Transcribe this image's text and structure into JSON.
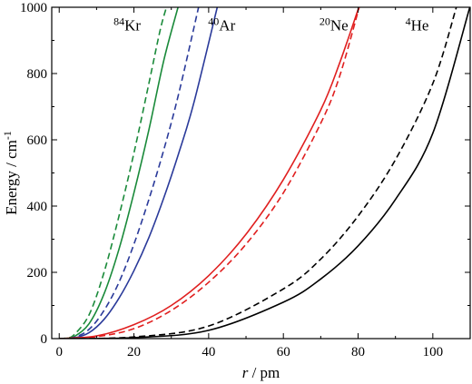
{
  "chart_data": {
    "type": "line",
    "title": "",
    "xlabel_var": "r",
    "xlabel_unit": " / pm",
    "ylabel_main": "Energy / cm",
    "ylabel_sup": "-1",
    "xlim": [
      -2,
      110
    ],
    "ylim": [
      0,
      1000
    ],
    "xticks": [
      0,
      20,
      40,
      60,
      80,
      100
    ],
    "yticks": [
      0,
      200,
      400,
      600,
      800,
      1000
    ],
    "grid": false,
    "annotations": [
      {
        "sup": "84",
        "text": "Kr",
        "x": 18.2,
        "y": 930
      },
      {
        "sup": "40",
        "text": "Ar",
        "x": 43.5,
        "y": 930
      },
      {
        "sup": "20",
        "text": "Ne",
        "x": 73.5,
        "y": 930
      },
      {
        "sup": "4",
        "text": "He",
        "x": 95.8,
        "y": 930
      }
    ],
    "series": [
      {
        "color": "#1a8a3a",
        "dash": true,
        "x": [
          0,
          2,
          4,
          8,
          12,
          16,
          20,
          24,
          27,
          28.7
        ],
        "y": [
          0,
          2,
          12,
          72,
          200,
          370,
          560,
          770,
          930,
          1000
        ]
      },
      {
        "color": "#1a8a3a",
        "dash": false,
        "x": [
          0,
          2,
          4,
          8,
          12,
          16,
          20,
          24,
          28,
          31.8
        ],
        "y": [
          0,
          1,
          6,
          45,
          135,
          270,
          440,
          630,
          840,
          1000
        ]
      },
      {
        "color": "#2a3a9a",
        "dash": true,
        "x": [
          0,
          4,
          8,
          12,
          16,
          20,
          24,
          28,
          32,
          37.3
        ],
        "y": [
          0,
          4,
          28,
          85,
          170,
          285,
          420,
          570,
          740,
          1000
        ]
      },
      {
        "color": "#2a3a9a",
        "dash": false,
        "x": [
          0,
          4,
          8,
          12,
          16,
          20,
          24,
          28,
          32,
          36,
          42.3
        ],
        "y": [
          0,
          2,
          18,
          58,
          122,
          205,
          305,
          425,
          560,
          710,
          1000
        ]
      },
      {
        "color": "#e01f1f",
        "dash": true,
        "x": [
          0,
          10,
          20,
          30,
          40,
          50,
          60,
          70,
          75,
          80.3
        ],
        "y": [
          0,
          6,
          30,
          85,
          170,
          285,
          440,
          650,
          790,
          1000
        ]
      },
      {
        "color": "#e01f1f",
        "dash": false,
        "x": [
          0,
          10,
          20,
          30,
          40,
          50,
          60,
          70,
          75,
          80.2
        ],
        "y": [
          0,
          8,
          42,
          100,
          190,
          315,
          480,
          690,
          830,
          1000
        ]
      },
      {
        "color": "#000000",
        "dash": true,
        "x": [
          0,
          20,
          40,
          60,
          70,
          80,
          90,
          100,
          106.3
        ],
        "y": [
          0,
          5,
          38,
          150,
          240,
          370,
          540,
          770,
          1000
        ]
      },
      {
        "color": "#000000",
        "dash": false,
        "x": [
          0,
          20,
          40,
          60,
          70,
          80,
          90,
          100,
          109.9
        ],
        "y": [
          0,
          3,
          25,
          110,
          180,
          280,
          420,
          620,
          1000
        ]
      }
    ]
  }
}
